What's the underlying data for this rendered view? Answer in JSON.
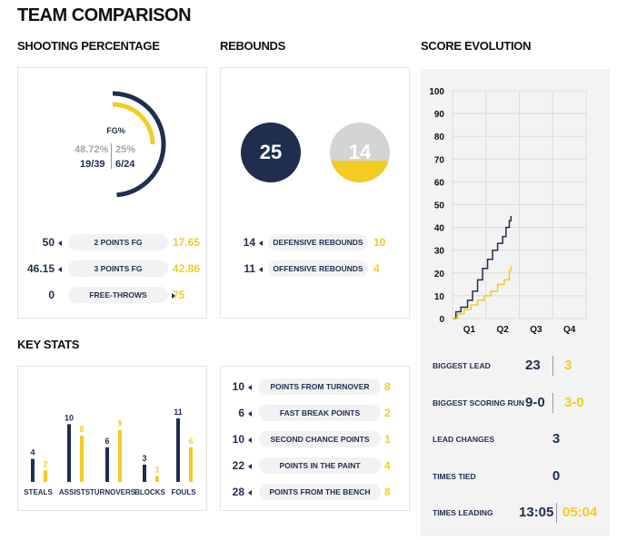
{
  "title": "TEAM COMPARISON",
  "colors": {
    "navy": "#1f2d4f",
    "yellow": "#f2cc22",
    "grey": "#a3a3a3",
    "light": "#d9d9d9"
  },
  "shooting": {
    "heading": "SHOOTING PERCENTAGE",
    "fg_label": "FG%",
    "team1_pct": "48.72%",
    "team2_pct": "25%",
    "team1_made": "19/39",
    "team2_made": "6/24",
    "team1_fraction": 0.4872,
    "team2_fraction": 0.25,
    "rows": [
      {
        "left": "50",
        "label": "2 POINTS FG",
        "right": "17.65",
        "arrow": "left"
      },
      {
        "left": "46.15",
        "label": "3 POINTS FG",
        "right": "42.86",
        "arrow": "left"
      },
      {
        "left": "0",
        "label": "FREE-THROWS",
        "right": "75",
        "arrow": "right"
      }
    ]
  },
  "rebounds": {
    "heading": "REBOUNDS",
    "team1_total": "25",
    "team2_total": "14",
    "rows": [
      {
        "left": "14",
        "label": "DEFENSIVE REBOUNDS",
        "right": "10"
      },
      {
        "left": "11",
        "label": "OFFENSIVE REBOUNDS",
        "right": "4"
      }
    ]
  },
  "key_stats": {
    "heading": "KEY STATS",
    "misc": [
      {
        "left": "10",
        "label": "POINTS FROM TURNOVER",
        "right": "8"
      },
      {
        "left": "6",
        "label": "FAST BREAK POINTS",
        "right": "2"
      },
      {
        "left": "10",
        "label": "SECOND CHANCE POINTS",
        "right": "1"
      },
      {
        "left": "22",
        "label": "POINTS IN THE PAINT",
        "right": "4"
      },
      {
        "left": "28",
        "label": "POINTS FROM THE BENCH",
        "right": "8"
      }
    ]
  },
  "score_evolution": {
    "heading": "SCORE EVOLUTION",
    "stats": [
      {
        "label": "BIGGEST LEAD",
        "left": "23",
        "right": "3"
      },
      {
        "label": "BIGGEST SCORING RUN",
        "left": "9-0",
        "right": "3-0"
      },
      {
        "label": "LEAD CHANGES",
        "left": "3",
        "right": ""
      },
      {
        "label": "TIMES TIED",
        "left": "0",
        "right": ""
      },
      {
        "label": "TIMES LEADING",
        "left": "13:05",
        "right": "05:04"
      }
    ]
  },
  "chart_data": [
    {
      "type": "bar",
      "categories": [
        "STEALS",
        "ASSISTS",
        "TURNOVERS",
        "BLOCKS",
        "FOULS"
      ],
      "series": [
        {
          "values": [
            4,
            10,
            6,
            3,
            11
          ]
        },
        {
          "values": [
            2,
            8,
            9,
            1,
            6
          ]
        }
      ],
      "grid": false
    },
    {
      "type": "line",
      "x_ticks": [
        "Q1",
        "Q2",
        "Q3",
        "Q4"
      ],
      "y_ticks": [
        0,
        10,
        20,
        30,
        40,
        50,
        60,
        70,
        80,
        90,
        100
      ],
      "ylim": [
        0,
        100
      ],
      "xlim": [
        0,
        4
      ],
      "grid": true,
      "series": [
        {
          "color": "navy",
          "points": [
            [
              0,
              0
            ],
            [
              0.1,
              3
            ],
            [
              0.25,
              5
            ],
            [
              0.45,
              8
            ],
            [
              0.6,
              12
            ],
            [
              0.75,
              17
            ],
            [
              0.9,
              22
            ],
            [
              1.05,
              26
            ],
            [
              1.2,
              30
            ],
            [
              1.35,
              33
            ],
            [
              1.5,
              36
            ],
            [
              1.6,
              40
            ],
            [
              1.7,
              43
            ],
            [
              1.75,
              45
            ]
          ]
        },
        {
          "color": "yellow",
          "points": [
            [
              0,
              0
            ],
            [
              0.15,
              2
            ],
            [
              0.35,
              4
            ],
            [
              0.55,
              6
            ],
            [
              0.75,
              8
            ],
            [
              0.95,
              10
            ],
            [
              1.15,
              12
            ],
            [
              1.35,
              15
            ],
            [
              1.55,
              17
            ],
            [
              1.7,
              21
            ],
            [
              1.75,
              23
            ]
          ]
        }
      ]
    }
  ]
}
